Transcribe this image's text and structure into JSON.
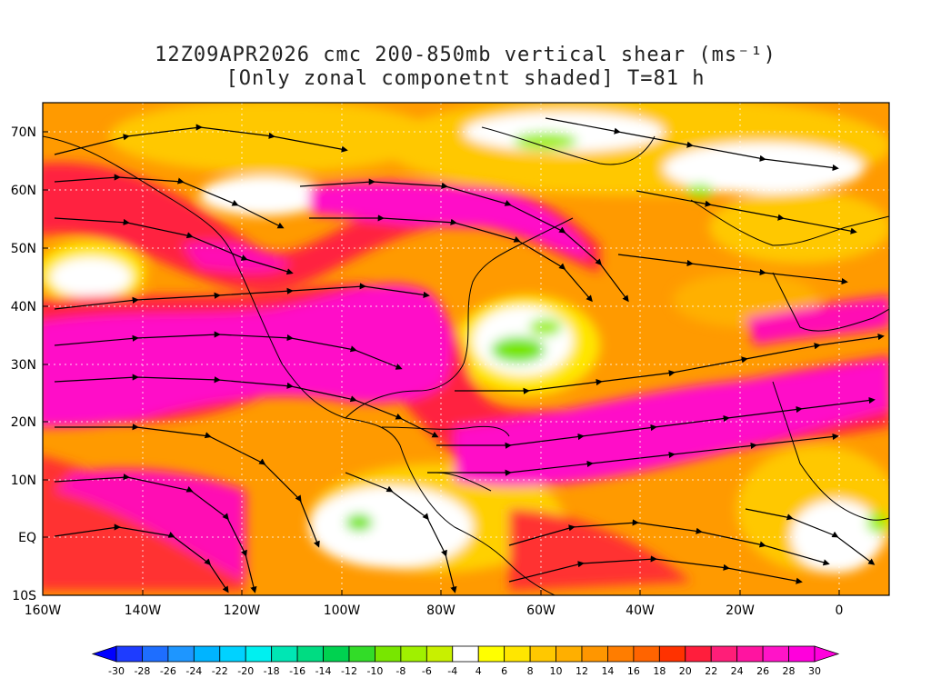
{
  "title": {
    "line1": "12Z09APR2026 cmc 200-850mb vertical shear (ms⁻¹)",
    "line2": "[Only zonal componetnt shaded] T=81 h"
  },
  "map": {
    "lat_labels": [
      "70N",
      "60N",
      "50N",
      "40N",
      "30N",
      "20N",
      "10N",
      "EQ",
      "10S"
    ],
    "lat_values": [
      70,
      60,
      50,
      40,
      30,
      20,
      10,
      0,
      -10
    ],
    "lon_labels": [
      "160W",
      "140W",
      "120W",
      "100W",
      "80W",
      "60W",
      "40W",
      "20W",
      "0"
    ],
    "lon_values": [
      -160,
      -140,
      -120,
      -100,
      -80,
      -60,
      -40,
      -20,
      0
    ],
    "lon_range": [
      -160,
      10
    ],
    "lat_range": [
      -10,
      75
    ],
    "grid": "dotted"
  },
  "colorbar": {
    "labels": [
      "-30",
      "-28",
      "-26",
      "-24",
      "-22",
      "-20",
      "-18",
      "-16",
      "-14",
      "-12",
      "-10",
      "-8",
      "-6",
      "-4",
      "4",
      "6",
      "8",
      "10",
      "12",
      "14",
      "16",
      "18",
      "20",
      "22",
      "24",
      "26",
      "28",
      "30"
    ],
    "colors": [
      "#0000ff",
      "#1e3cff",
      "#1e6eff",
      "#1e96ff",
      "#00b4ff",
      "#00d2ff",
      "#00f0f0",
      "#00e6b4",
      "#00dc82",
      "#00d250",
      "#32dc28",
      "#78e600",
      "#a0f000",
      "#c8f000",
      "#ffffff",
      "#ffff00",
      "#ffe600",
      "#ffc800",
      "#ffaf00",
      "#ff9600",
      "#ff7d00",
      "#ff6400",
      "#ff3200",
      "#ff1e3c",
      "#ff1e78",
      "#ff14a0",
      "#ff14c8",
      "#ff00dc",
      "#ff00dc"
    ]
  }
}
